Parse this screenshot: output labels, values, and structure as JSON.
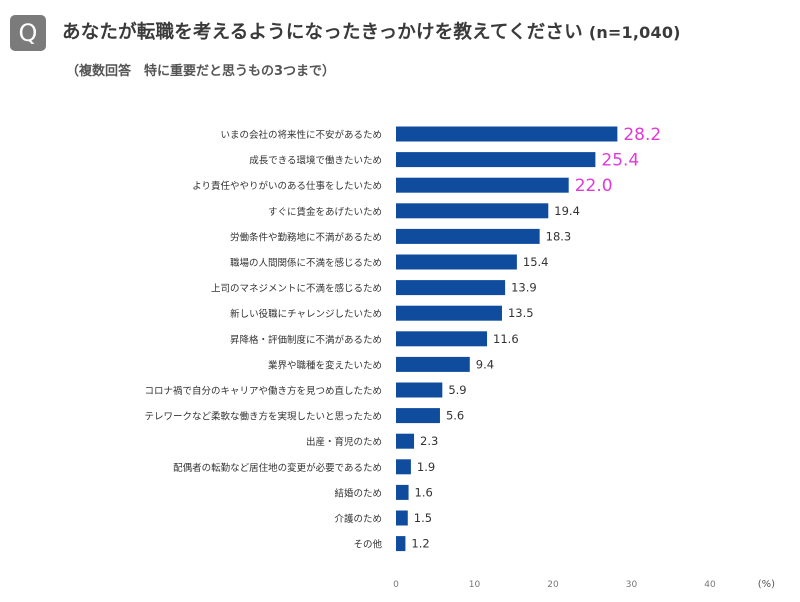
{
  "header": {
    "badge": "Q",
    "title": "あなたが転職を考えるようになったきっかけを教えてください",
    "sample": "(n=1,040)",
    "subtitle": "（複数回答　特に重要だと思うもの3つまで）"
  },
  "colors": {
    "bar": "#0f4c9e",
    "highlight_label": "#e03ad8",
    "label": "#333333"
  },
  "chart_data": {
    "type": "bar",
    "orientation": "horizontal",
    "categories": [
      "いまの会社の将来性に不安があるため",
      "成長できる環境で働きたいため",
      "より責任ややりがいのある仕事をしたいため",
      "すぐに賃金をあげたいため",
      "労働条件や勤務地に不満があるため",
      "職場の人間関係に不満を感じるため",
      "上司のマネジメントに不満を感じるため",
      "新しい役職にチャレンジしたいため",
      "昇降格・評価制度に不満があるため",
      "業界や職種を変えたいため",
      "コロナ禍で自分のキャリアや働き方を見つめ直したため",
      "テレワークなど柔軟な働き方を実現したいと思ったため",
      "出産・育児のため",
      "配偶者の転勤など居住地の変更が必要であるため",
      "結婚のため",
      "介護のため",
      "その他"
    ],
    "values": [
      28.2,
      25.4,
      22.0,
      19.4,
      18.3,
      15.4,
      13.9,
      13.5,
      11.6,
      9.4,
      5.9,
      5.6,
      2.3,
      1.9,
      1.6,
      1.5,
      1.2
    ],
    "value_labels": [
      "28.2",
      "25.4",
      "22.0",
      "19.4",
      "18.3",
      "15.4",
      "13.9",
      "13.5",
      "11.6",
      "9.4",
      "5.9",
      "5.6",
      "2.3",
      "1.9",
      "1.6",
      "1.5",
      "1.2"
    ],
    "highlight_top": 3,
    "xlim": [
      0,
      40
    ],
    "xticks": [
      "0",
      "10",
      "20",
      "30",
      "40"
    ],
    "xunit": "(%)",
    "grid": false
  }
}
